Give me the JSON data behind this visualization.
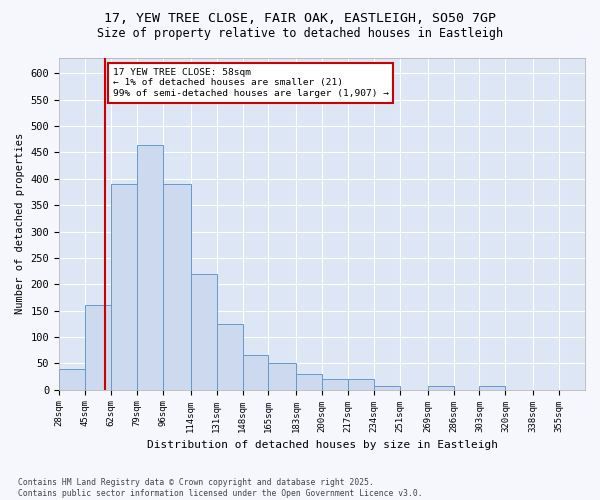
{
  "title_line1": "17, YEW TREE CLOSE, FAIR OAK, EASTLEIGH, SO50 7GP",
  "title_line2": "Size of property relative to detached houses in Eastleigh",
  "xlabel": "Distribution of detached houses by size in Eastleigh",
  "ylabel": "Number of detached properties",
  "bar_color": "#ccd9ee",
  "bar_edge_color": "#6699cc",
  "plot_bg_color": "#dce6f5",
  "fig_bg_color": "#f5f7fc",
  "grid_color": "#ffffff",
  "vline_x": 58,
  "vline_color": "#cc0000",
  "annotation_text": "17 YEW TREE CLOSE: 58sqm\n← 1% of detached houses are smaller (21)\n99% of semi-detached houses are larger (1,907) →",
  "annotation_box_facecolor": "#ffffff",
  "annotation_box_edgecolor": "#cc0000",
  "bins": [
    28,
    45,
    62,
    79,
    96,
    114,
    131,
    148,
    165,
    183,
    200,
    217,
    234,
    251,
    269,
    286,
    303,
    320,
    338,
    355,
    372
  ],
  "counts": [
    40,
    160,
    390,
    465,
    390,
    220,
    125,
    65,
    50,
    30,
    20,
    20,
    7,
    0,
    7,
    0,
    7,
    0,
    0,
    0
  ],
  "ylim": [
    0,
    630
  ],
  "yticks": [
    0,
    50,
    100,
    150,
    200,
    250,
    300,
    350,
    400,
    450,
    500,
    550,
    600
  ],
  "footer_text": "Contains HM Land Registry data © Crown copyright and database right 2025.\nContains public sector information licensed under the Open Government Licence v3.0.",
  "fig_width": 6.0,
  "fig_height": 5.0,
  "dpi": 100
}
